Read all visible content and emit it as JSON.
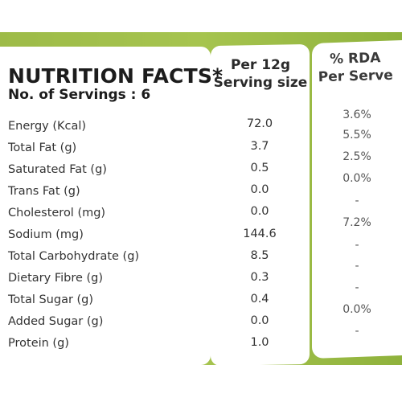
{
  "header": {
    "title": "NUTRITION FACTS*",
    "servings": "No. of Servings : 6",
    "col_serving": [
      "Per 12g",
      "Serving size"
    ],
    "col_rda": [
      "% RDA",
      "Per Serve"
    ]
  },
  "rows": [
    {
      "label": "Energy (Kcal)",
      "value": "72.0",
      "rda": "3.6%"
    },
    {
      "label": "Total Fat (g)",
      "value": "3.7",
      "rda": "5.5%"
    },
    {
      "label": "Saturated Fat (g)",
      "value": "0.5",
      "rda": "2.5%"
    },
    {
      "label": "Trans Fat (g)",
      "value": "0.0",
      "rda": "0.0%"
    },
    {
      "label": "Cholesterol (mg)",
      "value": "0.0",
      "rda": "-"
    },
    {
      "label": "Sodium (mg)",
      "value": "144.6",
      "rda": "7.2%"
    },
    {
      "label": "Total Carbohydrate (g)",
      "value": "8.5",
      "rda": "-"
    },
    {
      "label": "Dietary Fibre (g)",
      "value": "0.3",
      "rda": "-"
    },
    {
      "label": "Total Sugar (g)",
      "value": "0.4",
      "rda": "-"
    },
    {
      "label": "Added Sugar (g)",
      "value": "0.0",
      "rda": "0.0%"
    },
    {
      "label": "Protein (g)",
      "value": "1.0",
      "rda": "-"
    }
  ],
  "colors": {
    "band": "#a6c44f",
    "panel": "#ffffff",
    "text": "#1c1c1c"
  }
}
